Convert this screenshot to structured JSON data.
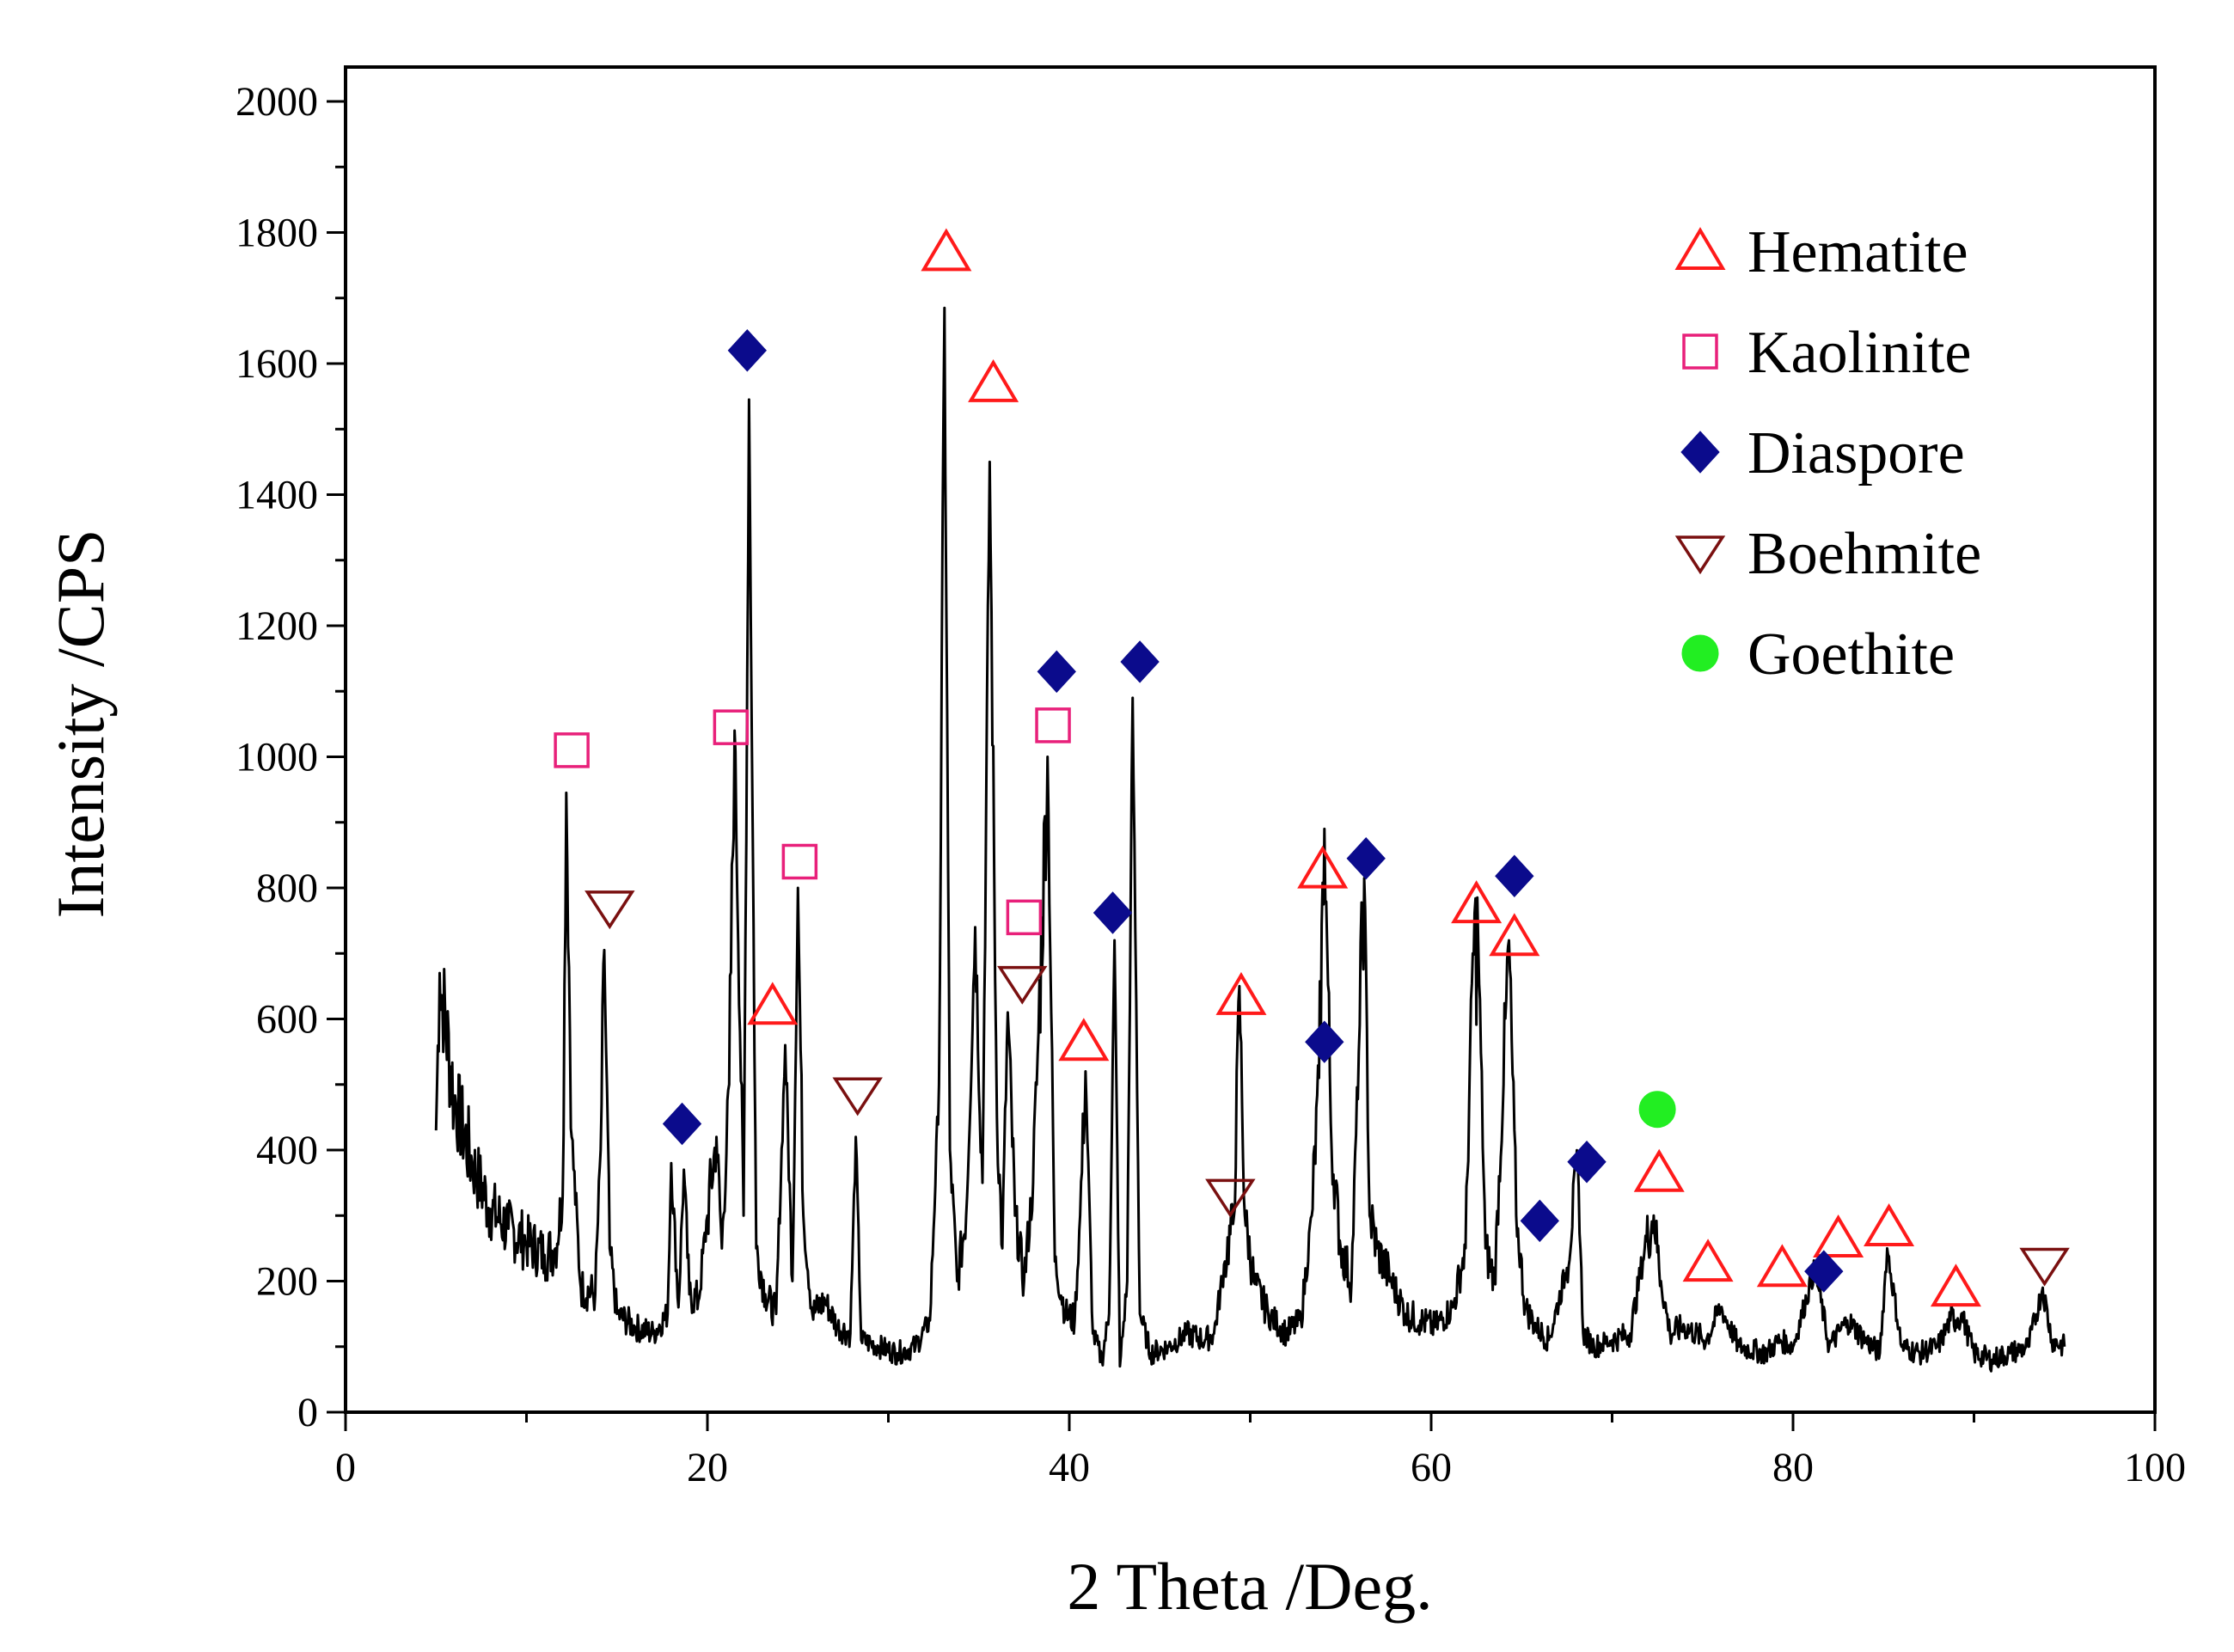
{
  "chart_data": {
    "type": "line",
    "xlabel": "2 Theta /Deg.",
    "ylabel": "Intensity /CPS",
    "xlim": [
      0,
      100
    ],
    "ylim": [
      0,
      2000
    ],
    "x_ticks": [
      "0",
      "20",
      "40",
      "60",
      "80",
      "100"
    ],
    "y_ticks": [
      "0",
      "200",
      "400",
      "600",
      "800",
      "1000",
      "1200",
      "1400",
      "1600",
      "1800",
      "2000"
    ],
    "grid": false,
    "legend_position": "top-right",
    "colors": {
      "Hematite": "#ff1a1a",
      "Kaolinite": "#e8207a",
      "Diaspore": "#0b0b8c",
      "Boehmite": "#7a1010",
      "Goethite": "#22ee22"
    },
    "series": [
      {
        "x": [
          5.0,
          5.2,
          6,
          7,
          8,
          9,
          10,
          11,
          11.6,
          12.0,
          12.2,
          12.5,
          13,
          13.8,
          14.1,
          14.3,
          14.6,
          15,
          16,
          17,
          17.8,
          18.0,
          18.4,
          18.7,
          19.0,
          19.5,
          20,
          20.5,
          20.8,
          21.2,
          21.5,
          22.0,
          22.3,
          22.7,
          23.2,
          23.8,
          24.3,
          24.7,
          25.0,
          25.3,
          25.8,
          26.5,
          27.2,
          27.9,
          28.2,
          28.5,
          29.5,
          30.5,
          31.5,
          32.3,
          32.8,
          33.1,
          33.4,
          33.8,
          34.3,
          34.8,
          35.2,
          35.6,
          36.0,
          36.3,
          36.6,
          37.0,
          37.5,
          38.0,
          38.3,
          38.8,
          39.2,
          39.8,
          40.3,
          40.6,
          40.9,
          41.3,
          41.8,
          42.2,
          42.5,
          42.8,
          43.2,
          43.5,
          43.9,
          44.5,
          45.5,
          46.5,
          47.5,
          48.0,
          48.6,
          49.1,
          49.4,
          49.7,
          50.2,
          51.0,
          52.0,
          52.8,
          53.4,
          53.8,
          54.1,
          54.5,
          55.0,
          55.6,
          56.0,
          56.3,
          56.6,
          57.0,
          57.8,
          58.6,
          59.4,
          60.2,
          61.2,
          61.9,
          62.3,
          62.6,
          63.0,
          63.5,
          64.0,
          64.3,
          64.7,
          65.2,
          65.8,
          66.5,
          67.5,
          68.1,
          68.4,
          69.0,
          70.0,
          71.0,
          71.8,
          72.3,
          72.7,
          73.2,
          74.0,
          75.2,
          76.0,
          77.0,
          78.5,
          79.3,
          80.0,
          81.2,
          82.0,
          83.0,
          84.0,
          84.8,
          85.2,
          86.0,
          87.0,
          88.0,
          88.7,
          89.3,
          90.0,
          91.0,
          92.0,
          93.0,
          93.8,
          94.3,
          95.0
        ],
        "y": [
          430,
          670,
          480,
          380,
          310,
          280,
          260,
          240,
          250,
          330,
          945,
          420,
          190,
          180,
          400,
          705,
          250,
          150,
          130,
          120,
          150,
          380,
          160,
          370,
          180,
          170,
          300,
          420,
          250,
          500,
          1040,
          300,
          1545,
          250,
          180,
          150,
          560,
          200,
          800,
          300,
          150,
          170,
          130,
          120,
          420,
          110,
          100,
          90,
          100,
          140,
          500,
          1685,
          400,
          200,
          300,
          740,
          350,
          1450,
          450,
          250,
          610,
          300,
          200,
          350,
          580,
          1000,
          230,
          150,
          140,
          300,
          520,
          120,
          80,
          150,
          720,
          70,
          200,
          1090,
          150,
          90,
          100,
          120,
          110,
          120,
          230,
          300,
          650,
          300,
          200,
          150,
          120,
          140,
          300,
          510,
          890,
          400,
          250,
          200,
          550,
          815,
          300,
          250,
          200,
          150,
          140,
          130,
          160,
          250,
          700,
          720,
          250,
          200,
          500,
          720,
          300,
          160,
          130,
          110,
          220,
          380,
          120,
          100,
          110,
          120,
          250,
          300,
          200,
          120,
          130,
          110,
          160,
          100,
          90,
          110,
          100,
          220,
          100,
          140,
          110,
          90,
          250,
          100,
          90,
          100,
          140,
          150,
          90,
          80,
          90,
          100,
          190,
          110,
          100
        ]
      }
    ],
    "phase_markers": {
      "Hematite": [
        [
          23.6,
          620
        ],
        [
          33.2,
          1770
        ],
        [
          35.8,
          1570
        ],
        [
          40.8,
          565
        ],
        [
          49.5,
          635
        ],
        [
          54.0,
          828
        ],
        [
          62.5,
          775
        ],
        [
          64.6,
          725
        ],
        [
          72.6,
          365
        ],
        [
          75.3,
          228
        ],
        [
          79.4,
          220
        ],
        [
          82.5,
          265
        ],
        [
          85.3,
          282
        ],
        [
          89.0,
          190
        ]
      ],
      "Kaolinite": [
        [
          12.5,
          1010
        ],
        [
          21.3,
          1045
        ],
        [
          25.1,
          840
        ],
        [
          37.5,
          755
        ],
        [
          39.1,
          1048
        ]
      ],
      "Diaspore": [
        [
          18.6,
          440
        ],
        [
          22.2,
          1620
        ],
        [
          39.3,
          1130
        ],
        [
          42.4,
          762
        ],
        [
          43.9,
          1145
        ],
        [
          54.1,
          565
        ],
        [
          56.4,
          845
        ],
        [
          64.6,
          818
        ],
        [
          66.0,
          292
        ],
        [
          68.6,
          382
        ],
        [
          81.7,
          215
        ]
      ],
      "Boehmite": [
        [
          14.6,
          770
        ],
        [
          28.3,
          485
        ],
        [
          37.4,
          655
        ],
        [
          48.9,
          330
        ],
        [
          93.9,
          225
        ]
      ],
      "Goethite": [
        [
          72.5,
          462
        ]
      ]
    },
    "legend": [
      "Hematite",
      "Kaolinite",
      "Diaspore",
      "Boehmite",
      "Goethite"
    ]
  }
}
